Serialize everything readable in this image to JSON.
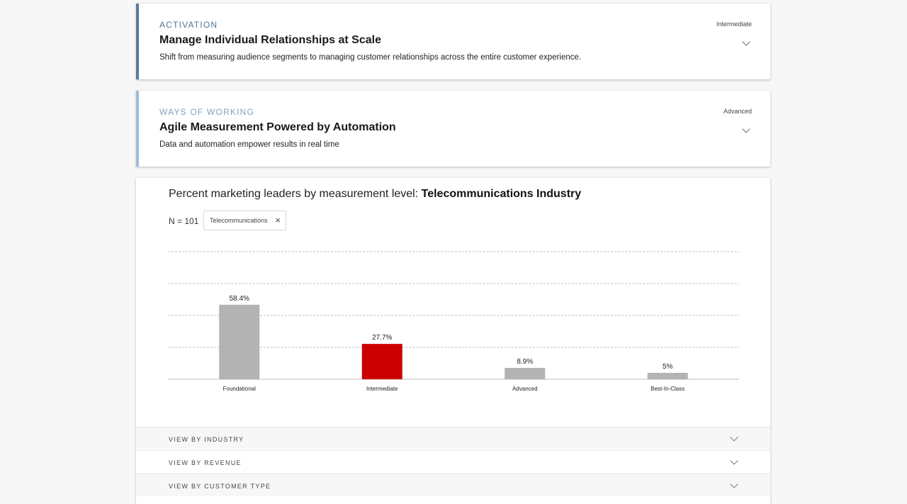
{
  "cards": [
    {
      "eyebrow": "ACTIVATION",
      "title": "Manage Individual Relationships at Scale",
      "description": "Shift from measuring audience segments to managing customer relationships across the entire customer experience.",
      "level": "Intermediate"
    },
    {
      "eyebrow": "WAYS OF WORKING",
      "title": "Agile Measurement Powered by Automation",
      "description": "Data and automation empower results in real time",
      "level": "Advanced"
    }
  ],
  "chart_panel": {
    "title_prefix": "Percent marketing leaders by measurement level:",
    "title_industry": "Telecommunications Industry",
    "n_label": "N = 101",
    "filter_chip": "Telecommunications",
    "chip_close": "×"
  },
  "chart_data": {
    "type": "bar",
    "categories": [
      "Foundational",
      "Intermediate",
      "Advanced",
      "Best-In-Class"
    ],
    "values": [
      58.4,
      27.7,
      8.9,
      5
    ],
    "data_labels": [
      "58.4%",
      "27.7%",
      "8.9%",
      "5%"
    ],
    "ylim": [
      0,
      100
    ],
    "grid": true,
    "colors": [
      "#b3b3b3",
      "#cc0000",
      "#b3b3b3",
      "#b3b3b3"
    ]
  },
  "accordions": [
    {
      "label": "VIEW BY INDUSTRY"
    },
    {
      "label": "VIEW BY REVENUE"
    },
    {
      "label": "VIEW BY CUSTOMER TYPE"
    }
  ]
}
